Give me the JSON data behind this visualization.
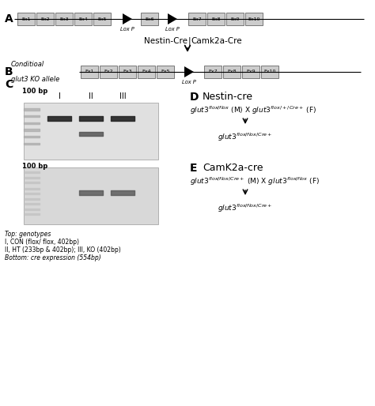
{
  "bg_color": "#ffffff",
  "label_A": "A",
  "label_B": "B",
  "label_C": "C",
  "label_D": "D",
  "label_E": "E",
  "loxP_label": "Lox P",
  "nestin_camk_left": "Nestin-Cre",
  "nestin_camk_right": "Camk2a-Cre",
  "cond_ko_line1": "Conditioal",
  "cond_ko_line2": "glut3 KO allele",
  "d_title": "Nestin-cre",
  "e_title": "CamK2a-cre",
  "c_100bp": "100 bp",
  "c_lanes": [
    "I",
    "II",
    "III"
  ],
  "caption_line1": "Top: genotypes",
  "caption_line2": "I, CON (flox/ flox, 402bp)",
  "caption_line3": "II, HT (233bp & 402bp); III, KO (402bp)",
  "caption_line4": "Bottom: cre expression (554bp)",
  "exon_facecolor": "#cccccc",
  "exon_edgecolor": "#666666",
  "gel_bg": "#e0e0e0",
  "gel_bg2": "#d8d8d8",
  "band_dark": "#222222",
  "band_mid": "#555555",
  "ladder_color": "#aaaaaa",
  "line_color": "#000000"
}
